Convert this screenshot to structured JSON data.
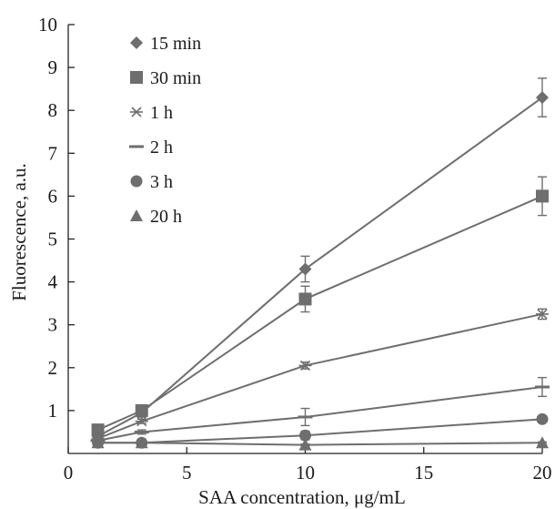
{
  "chart_data": {
    "type": "line",
    "xlabel": "SAA concentration, μg/mL",
    "ylabel": "Fluorescence, a.u.",
    "xlim": [
      0,
      20
    ],
    "ylim": [
      0,
      10
    ],
    "x_ticks": [
      0,
      5,
      10,
      15,
      20
    ],
    "y_ticks": [
      1,
      2,
      3,
      4,
      5,
      6,
      7,
      8,
      9,
      10
    ],
    "x": [
      1.25,
      3.1,
      10,
      20
    ],
    "grid": false,
    "legend_position": "top-left",
    "series_color": "#6e6e6e",
    "series": [
      {
        "name": "15 min",
        "marker": "diamond",
        "values": [
          0.4,
          0.95,
          4.3,
          8.3
        ],
        "errors": [
          0.05,
          0.1,
          0.3,
          0.45
        ]
      },
      {
        "name": "30 min",
        "marker": "square",
        "values": [
          0.55,
          1.0,
          3.6,
          6.0
        ],
        "errors": [
          0.05,
          0.08,
          0.3,
          0.45
        ]
      },
      {
        "name": "1 h",
        "marker": "star",
        "values": [
          0.35,
          0.75,
          2.05,
          3.25
        ],
        "errors": [
          0.04,
          0.05,
          0.08,
          0.12
        ]
      },
      {
        "name": "2 h",
        "marker": "dash",
        "values": [
          0.3,
          0.5,
          0.85,
          1.55
        ],
        "errors": [
          0.03,
          0.05,
          0.2,
          0.22
        ]
      },
      {
        "name": "3 h",
        "marker": "circle",
        "values": [
          0.25,
          0.25,
          0.42,
          0.8
        ],
        "errors": [
          0.03,
          0.03,
          0.1,
          0.05
        ]
      },
      {
        "name": "20 h",
        "marker": "triangle",
        "values": [
          0.25,
          0.25,
          0.2,
          0.25
        ],
        "errors": [
          0.02,
          0.02,
          0.02,
          0.02
        ]
      }
    ]
  }
}
